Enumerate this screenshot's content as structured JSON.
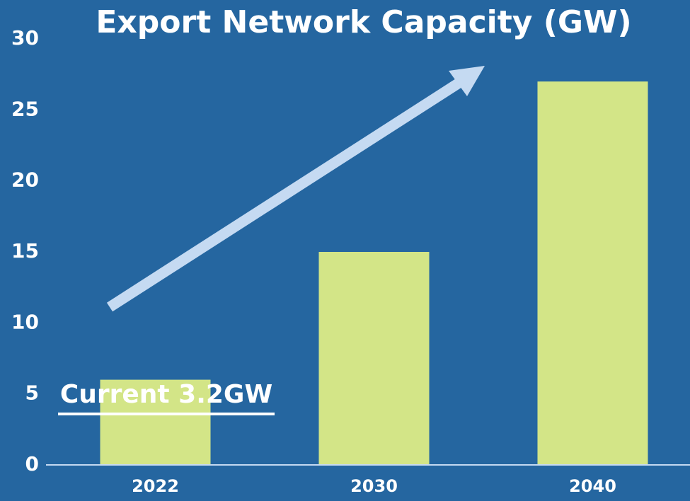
{
  "chart_data": {
    "type": "bar",
    "title": "Export Network Capacity (GW)",
    "categories": [
      "2022",
      "2030",
      "2040"
    ],
    "values": [
      6,
      15,
      27
    ],
    "color": "#d3e587",
    "ylim": [
      0,
      30
    ],
    "yticks": [
      0,
      5,
      10,
      15,
      20,
      25,
      30
    ],
    "annotation": "Current 3.2GW"
  }
}
